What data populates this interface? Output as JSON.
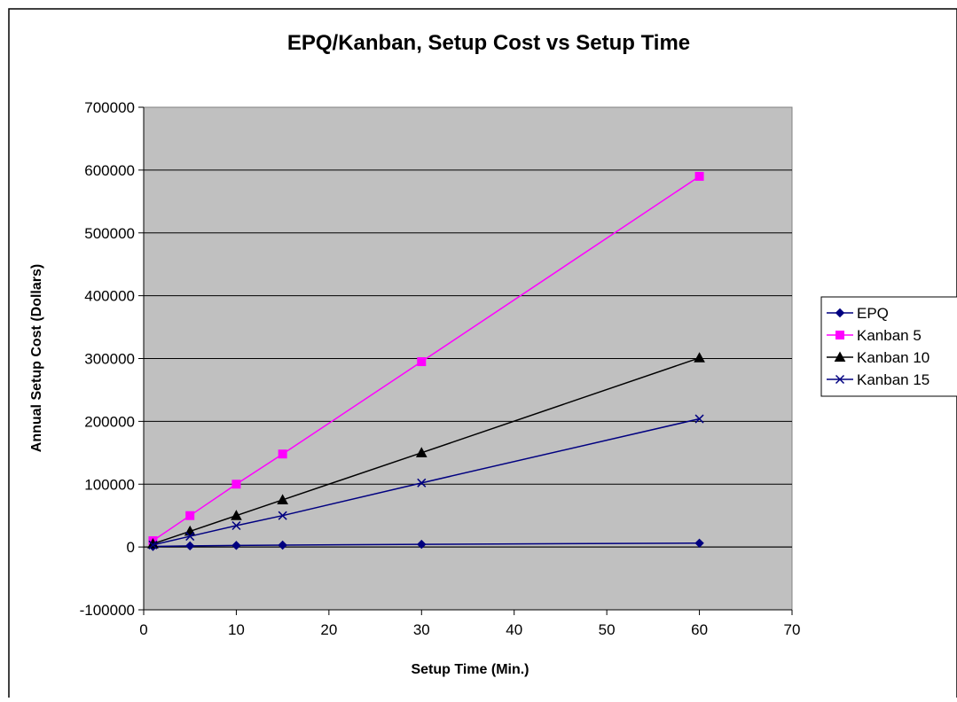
{
  "chart_data": {
    "type": "line",
    "title": "EPQ/Kanban, Setup Cost vs Setup Time",
    "xlabel": "Setup Time (Min.)",
    "ylabel": "Annual Setup Cost (Dollars)",
    "xlim": [
      0,
      70
    ],
    "ylim": [
      -100000,
      700000
    ],
    "xticks": [
      0,
      10,
      20,
      30,
      40,
      50,
      60,
      70
    ],
    "yticks": [
      -100000,
      0,
      100000,
      200000,
      300000,
      400000,
      500000,
      600000,
      700000
    ],
    "xtick_labels": [
      "0",
      "10",
      "20",
      "30",
      "40",
      "50",
      "60",
      "70"
    ],
    "ytick_labels": [
      "-100000",
      "0",
      "100000",
      "200000",
      "300000",
      "400000",
      "500000",
      "600000",
      "700000"
    ],
    "grid": "horizontal",
    "legend_position": "right",
    "plot_background": "#c0c0c0",
    "x": [
      1,
      5,
      10,
      15,
      30,
      60
    ],
    "series": [
      {
        "name": "EPQ",
        "values": [
          800,
          1800,
          2500,
          3000,
          4300,
          6100
        ],
        "color": "#000080",
        "marker": "diamond"
      },
      {
        "name": "Kanban 5",
        "values": [
          10000,
          50000,
          100000,
          148000,
          295000,
          590000
        ],
        "color": "#ff00ff",
        "marker": "square"
      },
      {
        "name": "Kanban 10",
        "values": [
          5000,
          25000,
          50000,
          75000,
          150000,
          301000
        ],
        "color": "#000000",
        "marker": "triangle"
      },
      {
        "name": "Kanban 15",
        "values": [
          3300,
          17000,
          34000,
          50000,
          102000,
          204000
        ],
        "color": "#000080",
        "marker": "x"
      }
    ]
  }
}
